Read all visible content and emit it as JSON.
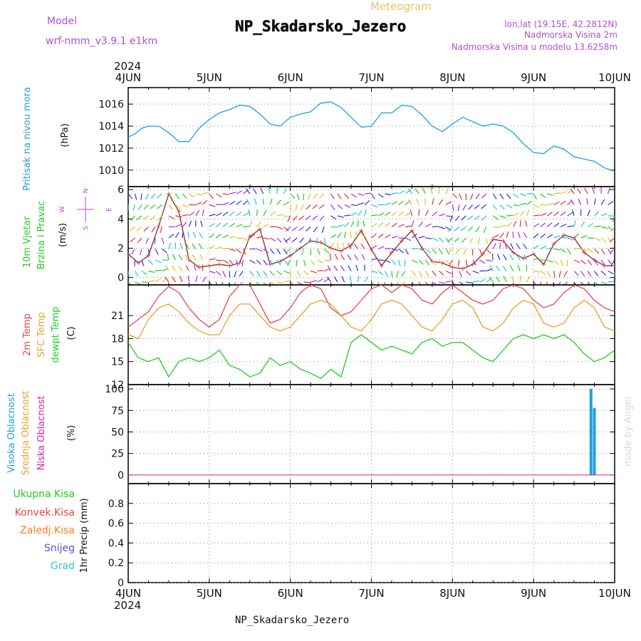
{
  "header": {
    "model_label": "Model",
    "model_name": "wrf-nmm_v3.9.1 e1km",
    "product": "Meteogram",
    "station": "NP_Skadarsko_Jezero",
    "coords": "lon,lat (19.15E, 42.2812N)",
    "elevation": "Nadmorska Visina 2m",
    "model_elevation": "Nadmorska Visina u modelu 13.6258m",
    "year_top": "2024",
    "year_bottom": "2024",
    "footer_station": "NP_Skadarsko_Jezero",
    "watermark": "made by Angel"
  },
  "colors": {
    "pressure": "#1ea0e0",
    "wind_title": "#22cc22",
    "wind_rose": "#c040e0",
    "temp_2m": "#e84848",
    "temp_sfc": "#e8a030",
    "temp_dew": "#22cc22",
    "cloud_high": "#1ea0e0",
    "cloud_mid": "#e8a030",
    "cloud_low": "#e020a0",
    "precip_total": "#22cc22",
    "precip_conv": "#e84848",
    "precip_frozen": "#ff8020",
    "precip_snow": "#5050e0",
    "precip_hail": "#30c8c8",
    "header_purple": "#b050d0",
    "header_orange": "#e8c070"
  },
  "chart_data": [
    {
      "type": "line",
      "panel": "pressure",
      "ylabel_series": "Pritisak na nivou mora",
      "ylabel_unit": "(hPa)",
      "x_labels": [
        "4JUN",
        "5JUN",
        "6JUN",
        "7JUN",
        "8JUN",
        "9JUN",
        "10JUN"
      ],
      "ylim": [
        1008.5,
        1017.5
      ],
      "yticks": [
        "1010",
        "1012",
        "1014",
        "1016"
      ],
      "grid": true,
      "series": [
        {
          "x_hours": [
            0,
            2,
            4,
            6,
            9,
            12,
            15,
            18,
            21,
            24,
            27,
            30,
            33,
            36,
            39,
            42,
            45,
            48,
            51,
            54,
            57,
            60,
            63,
            66,
            69,
            72,
            75,
            78,
            81,
            84,
            87,
            90,
            93,
            96,
            99,
            102,
            105,
            108,
            111,
            114,
            117,
            120,
            123,
            126,
            129,
            132,
            135,
            138,
            141,
            144
          ],
          "values": [
            1013.0,
            1013.3,
            1013.8,
            1014.0,
            1014.0,
            1013.4,
            1012.6,
            1012.6,
            1013.8,
            1014.6,
            1015.2,
            1015.5,
            1015.9,
            1015.8,
            1015.1,
            1014.2,
            1014.0,
            1014.8,
            1015.1,
            1015.3,
            1016.1,
            1016.2,
            1015.7,
            1014.8,
            1013.9,
            1014.0,
            1015.2,
            1015.2,
            1015.9,
            1015.8,
            1015.0,
            1014.0,
            1013.5,
            1014.2,
            1014.8,
            1014.4,
            1014.0,
            1014.2,
            1014.0,
            1013.4,
            1012.4,
            1011.6,
            1011.5,
            1012.2,
            1011.9,
            1011.2,
            1011.0,
            1010.8,
            1010.2,
            1009.9
          ]
        }
      ]
    },
    {
      "type": "line",
      "panel": "wind",
      "ylabel_series": "10m Vjetar",
      "ylabel_series2": "Brzina i Pravac",
      "ylabel_unit": "(m/s)",
      "rose_labels": [
        "N",
        "E",
        "S",
        "W"
      ],
      "ylim": [
        -0.5,
        6.2
      ],
      "yticks": [
        "0",
        "2",
        "4",
        "6"
      ],
      "grid": true,
      "series": [
        {
          "name": "wind speed",
          "x_hours": [
            0,
            3,
            6,
            9,
            12,
            15,
            18,
            21,
            24,
            27,
            30,
            33,
            36,
            39,
            42,
            45,
            48,
            51,
            54,
            57,
            60,
            63,
            66,
            69,
            72,
            75,
            78,
            81,
            84,
            87,
            90,
            93,
            96,
            99,
            102,
            105,
            108,
            111,
            114,
            117,
            120,
            123,
            126,
            129,
            132,
            135,
            138,
            141,
            144
          ],
          "values": [
            1.6,
            1.0,
            1.5,
            3.5,
            5.7,
            4.5,
            1.2,
            0.7,
            0.8,
            0.9,
            0.8,
            1.0,
            2.8,
            3.3,
            0.9,
            1.1,
            1.5,
            2.0,
            2.5,
            2.4,
            2.0,
            1.8,
            2.2,
            3.2,
            1.9,
            0.8,
            1.7,
            2.5,
            3.2,
            2.0,
            1.1,
            1.0,
            0.7,
            0.6,
            0.9,
            1.6,
            2.6,
            2.5,
            1.7,
            1.3,
            1.6,
            0.9,
            2.3,
            2.9,
            2.7,
            1.7,
            1.2,
            0.8,
            0.8
          ]
        }
      ]
    },
    {
      "type": "line",
      "panel": "temperature",
      "ylabel_series": "2m Temp",
      "ylabel_series2": "SFC Temp",
      "ylabel_series3": "dewpt Temp",
      "ylabel_unit": "(C)",
      "ylim": [
        12,
        25
      ],
      "yticks": [
        "12",
        "15",
        "18",
        "21"
      ],
      "grid": true,
      "series": [
        {
          "name": "2m Temp",
          "x_hours": [
            0,
            3,
            6,
            9,
            12,
            15,
            18,
            21,
            24,
            27,
            30,
            33,
            36,
            39,
            42,
            45,
            48,
            51,
            54,
            57,
            60,
            63,
            66,
            69,
            72,
            75,
            78,
            81,
            84,
            87,
            90,
            93,
            96,
            99,
            102,
            105,
            108,
            111,
            114,
            117,
            120,
            123,
            126,
            129,
            132,
            135,
            138,
            141,
            144
          ],
          "values": [
            19.5,
            20.5,
            21.5,
            23.5,
            24.8,
            24.0,
            22.0,
            20.5,
            19.5,
            20.5,
            23.5,
            25.0,
            25.0,
            22.5,
            20.0,
            20.5,
            22.0,
            24.0,
            25.0,
            24.5,
            22.0,
            21.0,
            21.5,
            23.0,
            24.5,
            25.0,
            24.0,
            25.0,
            24.5,
            23.0,
            22.5,
            24.0,
            25.0,
            24.0,
            23.0,
            22.5,
            23.0,
            24.5,
            25.0,
            24.5,
            23.0,
            22.0,
            22.5,
            24.0,
            25.0,
            24.5,
            23.0,
            22.0,
            21.5
          ]
        },
        {
          "name": "SFC Temp",
          "x_hours": [
            0,
            3,
            6,
            9,
            12,
            15,
            18,
            21,
            24,
            27,
            30,
            33,
            36,
            39,
            42,
            45,
            48,
            51,
            54,
            57,
            60,
            63,
            66,
            69,
            72,
            75,
            78,
            81,
            84,
            87,
            90,
            93,
            96,
            99,
            102,
            105,
            108,
            111,
            114,
            117,
            120,
            123,
            126,
            129,
            132,
            135,
            138,
            141,
            144
          ],
          "values": [
            18.5,
            18.0,
            20.5,
            22.0,
            22.5,
            21.5,
            20.0,
            19.0,
            18.5,
            18.5,
            21.0,
            22.5,
            22.5,
            21.0,
            19.5,
            19.0,
            19.5,
            21.0,
            22.5,
            23.0,
            22.5,
            21.0,
            19.5,
            19.0,
            20.5,
            22.5,
            23.0,
            22.5,
            21.0,
            19.5,
            19.0,
            20.5,
            22.5,
            23.0,
            22.0,
            19.5,
            19.0,
            20.0,
            22.0,
            23.0,
            22.5,
            20.0,
            19.5,
            20.0,
            22.0,
            23.0,
            22.0,
            19.5,
            19.0
          ]
        },
        {
          "name": "dewpt Temp",
          "x_hours": [
            0,
            3,
            6,
            9,
            12,
            15,
            18,
            21,
            24,
            27,
            30,
            33,
            36,
            39,
            42,
            45,
            48,
            51,
            54,
            57,
            60,
            63,
            66,
            69,
            72,
            75,
            78,
            81,
            84,
            87,
            90,
            93,
            96,
            99,
            102,
            105,
            108,
            111,
            114,
            117,
            120,
            123,
            126,
            129,
            132,
            135,
            138,
            141,
            144
          ],
          "values": [
            17.5,
            15.5,
            15.0,
            15.5,
            13.0,
            15.0,
            15.5,
            15.0,
            15.5,
            16.5,
            14.5,
            14.0,
            13.0,
            13.5,
            15.5,
            14.5,
            15.0,
            14.0,
            13.5,
            12.8,
            14.0,
            13.0,
            17.5,
            18.5,
            17.5,
            16.5,
            17.0,
            16.5,
            16.0,
            17.5,
            18.0,
            17.0,
            17.5,
            17.5,
            16.5,
            15.5,
            15.0,
            16.5,
            18.0,
            18.5,
            18.0,
            18.5,
            18.0,
            18.5,
            17.5,
            16.0,
            15.0,
            15.5,
            16.5
          ]
        }
      ]
    },
    {
      "type": "bar",
      "panel": "cloud",
      "ylabel_series": "Visoka Oblacnost",
      "ylabel_series2": "Srednja Oblacnost",
      "ylabel_series3": "Niska Oblacnost",
      "ylabel_unit": "(%)",
      "ylim": [
        -10,
        105
      ],
      "yticks": [
        "0",
        "25",
        "50",
        "75",
        "100"
      ],
      "grid": true,
      "series": [
        {
          "name": "Visoka Oblacnost",
          "x_hours": [
            137,
            138
          ],
          "values": [
            100,
            78
          ]
        }
      ]
    },
    {
      "type": "line",
      "panel": "precip",
      "ylabel_series": "1hr Precip (mm)",
      "labels": [
        "Ukupna Kisa",
        "Konvek.Kisa",
        "Zaledj.Kisa",
        "Snijeg",
        "Grad"
      ],
      "x_labels": [
        "4JUN",
        "5JUN",
        "6JUN",
        "7JUN",
        "8JUN",
        "9JUN",
        "10JUN"
      ],
      "ylim": [
        0,
        1.0
      ],
      "yticks": [
        "0",
        "0.2",
        "0.4",
        "0.6",
        "0.8"
      ],
      "grid": true,
      "series": []
    }
  ]
}
